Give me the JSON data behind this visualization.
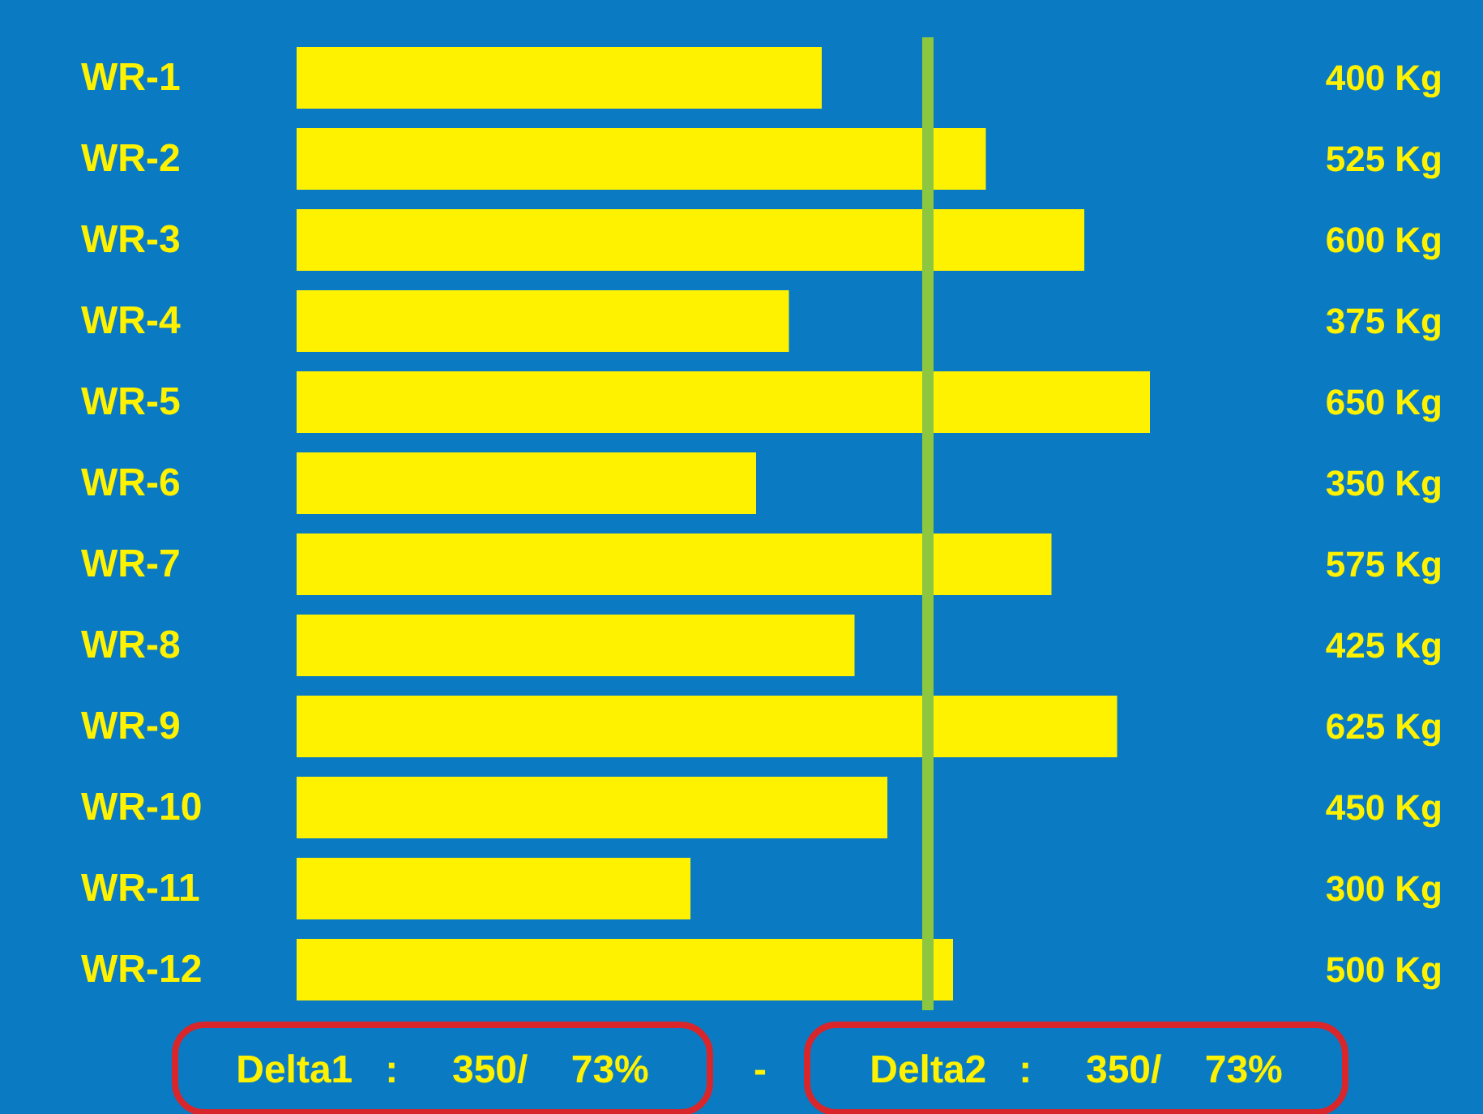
{
  "chart_data": {
    "type": "bar",
    "orientation": "horizontal",
    "categories": [
      "WR-1",
      "WR-2",
      "WR-3",
      "WR-4",
      "WR-5",
      "WR-6",
      "WR-7",
      "WR-8",
      "WR-9",
      "WR-10",
      "WR-11",
      "WR-12"
    ],
    "values": [
      400,
      525,
      600,
      375,
      650,
      350,
      575,
      425,
      625,
      450,
      300,
      500
    ],
    "value_labels": [
      "400 Kg",
      "525 Kg",
      "600 Kg",
      "375 Kg",
      "650 Kg",
      "350 Kg",
      "575 Kg",
      "425 Kg",
      "625 Kg",
      "450 Kg",
      "300 Kg",
      "500 Kg"
    ],
    "color": "#fff200",
    "tick_labels": "y",
    "ref_lines": [
      {
        "axis": "x",
        "value": 480,
        "label": null,
        "color": "#8dc63f"
      }
    ],
    "annotations": [
      "Delta1   :     350/    73%",
      "-",
      "Delta2   :     350/    73%"
    ]
  }
}
